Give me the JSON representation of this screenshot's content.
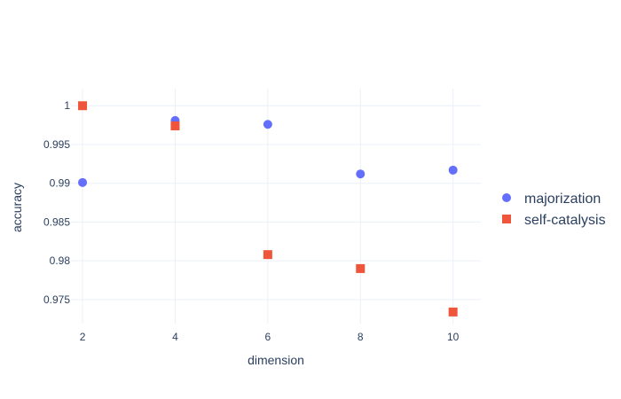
{
  "chart_data": {
    "type": "scatter",
    "xlabel": "dimension",
    "ylabel": "accuracy",
    "x_ticks": [
      2,
      4,
      6,
      8,
      10
    ],
    "y_ticks": [
      0.975,
      0.98,
      0.985,
      0.99,
      0.995,
      1
    ],
    "y_tick_labels": [
      "0.975",
      "0.98",
      "0.985",
      "0.99",
      "0.995",
      "1"
    ],
    "x_tick_labels": [
      "2",
      "4",
      "6",
      "8",
      "10"
    ],
    "xlim": [
      1.75,
      10.6
    ],
    "ylim": [
      0.9719,
      1.0022
    ],
    "grid": true,
    "legend_position": "right",
    "series": [
      {
        "name": "majorization",
        "marker": "circle",
        "color": "#636efa",
        "x": [
          2,
          4,
          6,
          8,
          10
        ],
        "y": [
          0.9901,
          0.9981,
          0.9976,
          0.9912,
          0.9917
        ]
      },
      {
        "name": "self-catalysis",
        "marker": "square",
        "color": "#ef553b",
        "x": [
          2,
          4,
          6,
          8,
          10
        ],
        "y": [
          1.0,
          0.9974,
          0.9808,
          0.979,
          0.9734
        ]
      }
    ]
  }
}
